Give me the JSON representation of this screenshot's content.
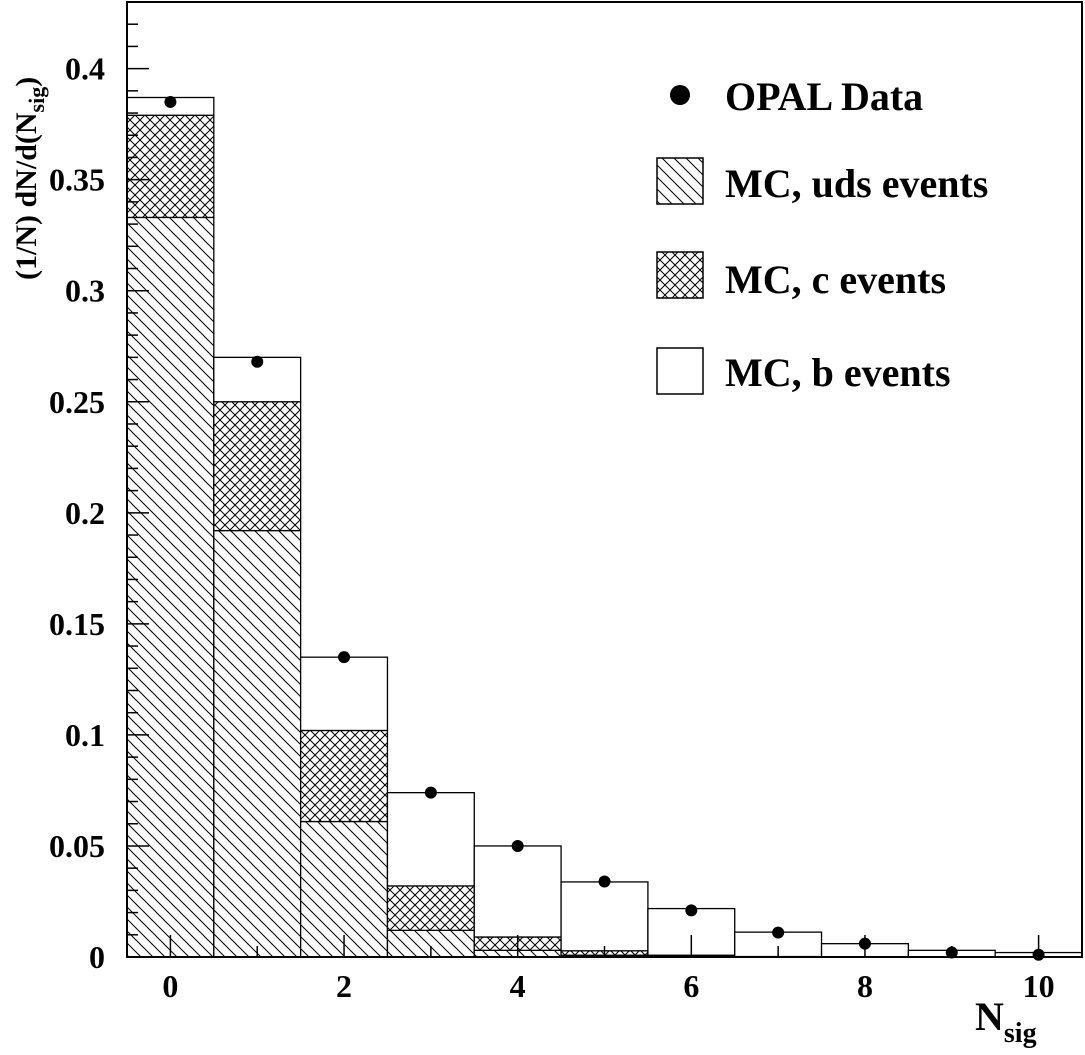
{
  "chart_data": {
    "type": "bar",
    "stacked": true,
    "x": [
      0,
      1,
      2,
      3,
      4,
      5,
      6,
      7,
      8,
      9,
      10
    ],
    "xlim": [
      -0.5,
      10.5
    ],
    "ylim": [
      0,
      0.43
    ],
    "xticks": [
      0,
      2,
      4,
      6,
      8,
      10
    ],
    "xtick_labels": [
      "0",
      "2",
      "4",
      "6",
      "8",
      "10"
    ],
    "yticks": [
      0,
      0.05,
      0.1,
      0.15,
      0.2,
      0.25,
      0.3,
      0.35,
      0.4
    ],
    "ytick_labels": [
      "0",
      "0.05",
      "0.1",
      "0.15",
      "0.2",
      "0.25",
      "0.3",
      "0.35",
      "0.4"
    ],
    "xlabel": {
      "main": "N",
      "sub": "sig"
    },
    "ylabel": {
      "main": "(1/N) dN/d(N",
      "sub": "sig",
      "close": ")"
    },
    "series": [
      {
        "name": "MC, uds events",
        "fill": "hatch-diagonal",
        "values": [
          0.333,
          0.192,
          0.061,
          0.012,
          0.003,
          0.0008,
          0.0002,
          0.0,
          0.0,
          0.0,
          0.0
        ]
      },
      {
        "name": "MC, c events",
        "fill": "hatch-cross",
        "values": [
          0.046,
          0.058,
          0.041,
          0.02,
          0.006,
          0.002,
          0.0006,
          0.0002,
          0.0,
          0.0,
          0.0
        ]
      },
      {
        "name": "MC, b events",
        "fill": "open",
        "values": [
          0.008,
          0.02,
          0.033,
          0.042,
          0.041,
          0.031,
          0.021,
          0.011,
          0.006,
          0.003,
          0.002
        ]
      }
    ],
    "data_points": {
      "name": "OPAL Data",
      "values": [
        0.385,
        0.268,
        0.135,
        0.074,
        0.05,
        0.034,
        0.021,
        0.011,
        0.006,
        0.002,
        0.001
      ]
    },
    "legend_position": "top-right",
    "grid": false
  }
}
